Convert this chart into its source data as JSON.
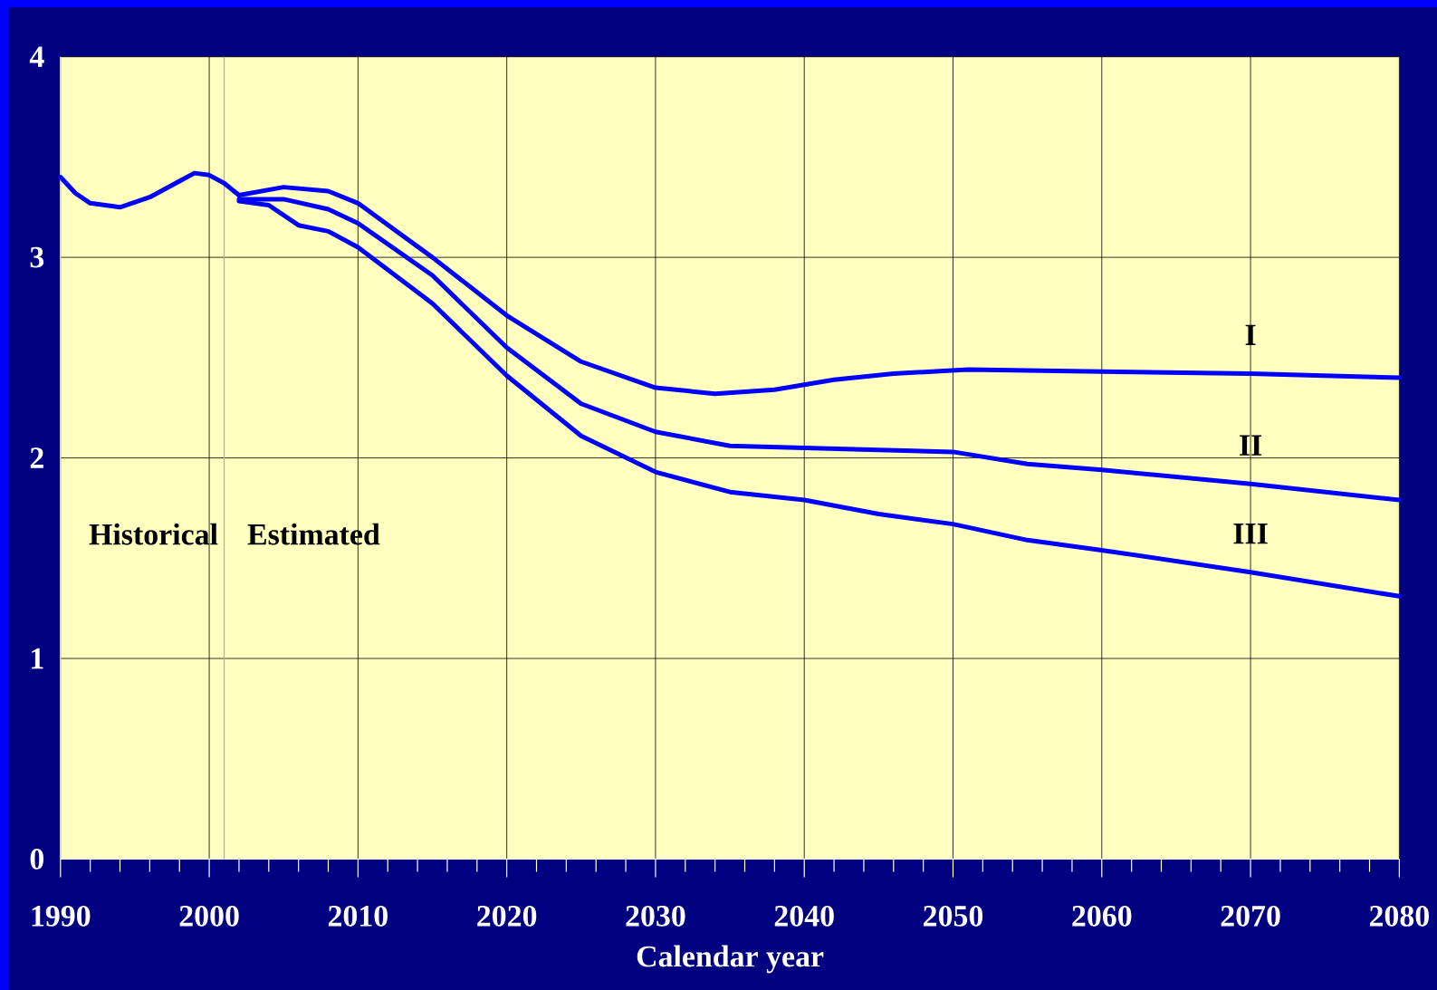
{
  "chart_data": {
    "type": "line",
    "xlabel": "Calendar year",
    "xlim": [
      1990,
      2080
    ],
    "xticks": [
      1990,
      2000,
      2010,
      2020,
      2030,
      2040,
      2050,
      2060,
      2070,
      2080
    ],
    "ylim": [
      0,
      4
    ],
    "yticks": [
      0,
      1,
      2,
      3,
      4
    ],
    "grid": true,
    "marker": "none",
    "line_style": "solid",
    "series": [
      {
        "color": "#0000ff",
        "x": [
          1990,
          1991,
          1992,
          1994,
          1996,
          1998,
          1999,
          2000,
          2001,
          2002
        ],
        "values": [
          3.4,
          3.32,
          3.27,
          3.25,
          3.3,
          3.38,
          3.42,
          3.41,
          3.37,
          3.31
        ]
      },
      {
        "name": "I",
        "color": "#0000ff",
        "x": [
          2002,
          2005,
          2008,
          2010,
          2015,
          2020,
          2025,
          2030,
          2034,
          2038,
          2042,
          2046,
          2051,
          2060,
          2070,
          2080
        ],
        "values": [
          3.31,
          3.35,
          3.33,
          3.27,
          3.0,
          2.71,
          2.48,
          2.35,
          2.32,
          2.34,
          2.39,
          2.42,
          2.44,
          2.43,
          2.42,
          2.4
        ]
      },
      {
        "name": "II",
        "color": "#0000ff",
        "x": [
          2002,
          2005,
          2008,
          2010,
          2015,
          2020,
          2025,
          2030,
          2035,
          2040,
          2045,
          2050,
          2055,
          2060,
          2070,
          2080
        ],
        "values": [
          3.29,
          3.29,
          3.24,
          3.17,
          2.91,
          2.55,
          2.27,
          2.13,
          2.06,
          2.05,
          2.04,
          2.03,
          1.97,
          1.94,
          1.87,
          1.79
        ]
      },
      {
        "name": "III",
        "color": "#0000ff",
        "x": [
          2002,
          2004,
          2006,
          2008,
          2010,
          2015,
          2020,
          2025,
          2030,
          2035,
          2040,
          2045,
          2050,
          2055,
          2060,
          2070,
          2080
        ],
        "values": [
          3.28,
          3.26,
          3.16,
          3.13,
          3.05,
          2.77,
          2.41,
          2.11,
          1.93,
          1.83,
          1.79,
          1.72,
          1.67,
          1.59,
          1.54,
          1.43,
          1.31
        ]
      }
    ],
    "ref_lines": [
      {
        "axis": "x",
        "value": 2001,
        "color": "#8fb0e8"
      }
    ],
    "annotations": [
      "Historical",
      "Estimated"
    ]
  }
}
